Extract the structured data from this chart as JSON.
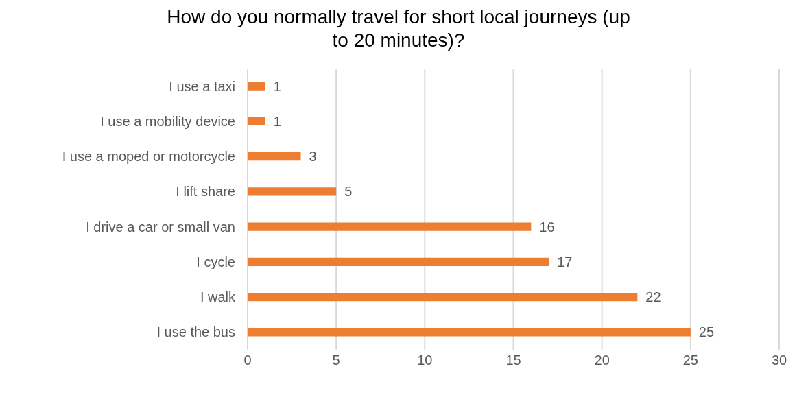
{
  "chart_data": {
    "type": "bar",
    "orientation": "horizontal",
    "title": "How do you normally travel for short local journeys (up to 20 minutes)?",
    "categories": [
      "I use a taxi",
      "I use a mobility device",
      "I use a moped or motorcycle",
      "I lift share",
      "I drive a car or small van",
      "I cycle",
      "I walk",
      "I use the bus"
    ],
    "values": [
      1,
      1,
      3,
      5,
      16,
      17,
      22,
      25
    ],
    "color": "#ed7d31",
    "xlim": [
      0,
      30
    ],
    "xticks": [
      0,
      5,
      10,
      15,
      20,
      25,
      30
    ],
    "grid": "x",
    "data_labels": true
  }
}
